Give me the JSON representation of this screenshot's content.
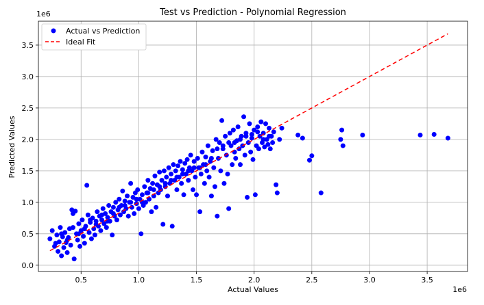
{
  "chart_data": {
    "type": "scatter",
    "title": "Test vs Prediction - Polynomial Regression",
    "xlabel": "Actual Values",
    "ylabel": "Predicted Values",
    "x_multiplier": "1e6",
    "y_multiplier": "1e6",
    "xlim": [
      0.13,
      3.85
    ],
    "ylim": [
      -0.1,
      3.88
    ],
    "x_ticks": [
      "0.5",
      "1.0",
      "1.5",
      "2.0",
      "2.5",
      "3.0",
      "3.5"
    ],
    "y_ticks": [
      "0.0",
      "0.5",
      "1.0",
      "1.5",
      "2.0",
      "2.5",
      "3.0",
      "3.5"
    ],
    "grid": true,
    "legend_position": "top-left",
    "series": [
      {
        "name": "Actual vs Prediction",
        "color": "#0000ff",
        "marker": "circle",
        "points": [
          [
            0.23,
            0.42
          ],
          [
            0.25,
            0.55
          ],
          [
            0.27,
            0.3
          ],
          [
            0.29,
            0.48
          ],
          [
            0.3,
            0.22
          ],
          [
            0.31,
            0.37
          ],
          [
            0.32,
            0.6
          ],
          [
            0.33,
            0.15
          ],
          [
            0.34,
            0.45
          ],
          [
            0.35,
            0.28
          ],
          [
            0.36,
            0.52
          ],
          [
            0.37,
            0.36
          ],
          [
            0.38,
            0.2
          ],
          [
            0.39,
            0.44
          ],
          [
            0.4,
            0.58
          ],
          [
            0.41,
            0.32
          ],
          [
            0.42,
            0.88
          ],
          [
            0.43,
            0.82
          ],
          [
            0.44,
            0.1
          ],
          [
            0.45,
            0.86
          ],
          [
            0.46,
            0.5
          ],
          [
            0.47,
            0.4
          ],
          [
            0.48,
            0.66
          ],
          [
            0.49,
            0.3
          ],
          [
            0.5,
            0.55
          ],
          [
            0.51,
            0.72
          ],
          [
            0.52,
            0.46
          ],
          [
            0.53,
            0.35
          ],
          [
            0.54,
            0.62
          ],
          [
            0.55,
            1.27
          ],
          [
            0.56,
            0.8
          ],
          [
            0.57,
            0.52
          ],
          [
            0.58,
            0.68
          ],
          [
            0.59,
            0.42
          ],
          [
            0.6,
            0.75
          ],
          [
            0.61,
            0.58
          ],
          [
            0.62,
            0.48
          ],
          [
            0.63,
            0.7
          ],
          [
            0.64,
            0.85
          ],
          [
            0.65,
            0.62
          ],
          [
            0.66,
            0.78
          ],
          [
            0.67,
            0.55
          ],
          [
            0.68,
            0.72
          ],
          [
            0.69,
            0.9
          ],
          [
            0.7,
            0.66
          ],
          [
            0.71,
            0.82
          ],
          [
            0.72,
            0.6
          ],
          [
            0.73,
            0.76
          ],
          [
            0.74,
            0.95
          ],
          [
            0.75,
            0.7
          ],
          [
            0.76,
            0.85
          ],
          [
            0.77,
            0.48
          ],
          [
            0.78,
            0.92
          ],
          [
            0.79,
            0.78
          ],
          [
            0.8,
            1.0
          ],
          [
            0.81,
            0.72
          ],
          [
            0.82,
            0.88
          ],
          [
            0.83,
            1.05
          ],
          [
            0.84,
            0.8
          ],
          [
            0.85,
            0.95
          ],
          [
            0.86,
            1.18
          ],
          [
            0.87,
            0.85
          ],
          [
            0.88,
            1.02
          ],
          [
            0.89,
            0.9
          ],
          [
            0.9,
            1.1
          ],
          [
            0.91,
            0.78
          ],
          [
            0.92,
            1.0
          ],
          [
            0.93,
            1.3
          ],
          [
            0.94,
            0.92
          ],
          [
            0.95,
            1.08
          ],
          [
            0.96,
            0.82
          ],
          [
            0.97,
            1.15
          ],
          [
            0.98,
            0.98
          ],
          [
            0.99,
            1.2
          ],
          [
            1.0,
            0.9
          ],
          [
            1.01,
            1.05
          ],
          [
            1.02,
            0.5
          ],
          [
            1.03,
            1.12
          ],
          [
            1.04,
            0.95
          ],
          [
            1.05,
            1.25
          ],
          [
            1.06,
            1.0
          ],
          [
            1.07,
            1.15
          ],
          [
            1.08,
            1.35
          ],
          [
            1.09,
            1.05
          ],
          [
            1.1,
            1.22
          ],
          [
            1.11,
            0.85
          ],
          [
            1.12,
            1.3
          ],
          [
            1.13,
            1.1
          ],
          [
            1.14,
            1.42
          ],
          [
            1.15,
            0.92
          ],
          [
            1.16,
            1.28
          ],
          [
            1.17,
            1.15
          ],
          [
            1.18,
            1.48
          ],
          [
            1.19,
            1.2
          ],
          [
            1.2,
            1.35
          ],
          [
            1.21,
            0.65
          ],
          [
            1.22,
            1.5
          ],
          [
            1.23,
            1.25
          ],
          [
            1.24,
            1.4
          ],
          [
            1.25,
            1.1
          ],
          [
            1.26,
            1.55
          ],
          [
            1.27,
            1.3
          ],
          [
            1.28,
            1.45
          ],
          [
            1.29,
            0.62
          ],
          [
            1.3,
            1.6
          ],
          [
            1.31,
            1.35
          ],
          [
            1.32,
            1.5
          ],
          [
            1.33,
            1.2
          ],
          [
            1.34,
            1.58
          ],
          [
            1.35,
            1.4
          ],
          [
            1.36,
            1.65
          ],
          [
            1.37,
            1.3
          ],
          [
            1.38,
            1.52
          ],
          [
            1.39,
            1.12
          ],
          [
            1.4,
            1.62
          ],
          [
            1.41,
            1.45
          ],
          [
            1.42,
            1.68
          ],
          [
            1.43,
            1.35
          ],
          [
            1.44,
            1.55
          ],
          [
            1.45,
            1.75
          ],
          [
            1.46,
            1.5
          ],
          [
            1.47,
            1.2
          ],
          [
            1.48,
            1.65
          ],
          [
            1.49,
            1.4
          ],
          [
            1.5,
            1.12
          ],
          [
            1.51,
            1.7
          ],
          [
            1.52,
            1.55
          ],
          [
            1.53,
            0.85
          ],
          [
            1.54,
            1.45
          ],
          [
            1.55,
            1.8
          ],
          [
            1.56,
            1.6
          ],
          [
            1.57,
            1.3
          ],
          [
            1.58,
            1.72
          ],
          [
            1.59,
            1.5
          ],
          [
            1.6,
            1.9
          ],
          [
            1.61,
            1.4
          ],
          [
            1.62,
            1.65
          ],
          [
            1.63,
            1.1
          ],
          [
            1.64,
            1.82
          ],
          [
            1.65,
            1.55
          ],
          [
            1.66,
            1.25
          ],
          [
            1.67,
            2.0
          ],
          [
            1.68,
            0.78
          ],
          [
            1.69,
            1.7
          ],
          [
            1.7,
            1.95
          ],
          [
            1.71,
            1.5
          ],
          [
            1.72,
            2.3
          ],
          [
            1.73,
            1.85
          ],
          [
            1.74,
            1.3
          ],
          [
            1.75,
            2.05
          ],
          [
            1.76,
            1.75
          ],
          [
            1.77,
            1.45
          ],
          [
            1.78,
            0.9
          ],
          [
            1.79,
            2.1
          ],
          [
            1.8,
            1.9
          ],
          [
            1.81,
            1.6
          ],
          [
            1.82,
            2.15
          ],
          [
            1.83,
            1.8
          ],
          [
            1.84,
            1.7
          ],
          [
            1.85,
            1.98
          ],
          [
            1.86,
            2.2
          ],
          [
            1.87,
            1.85
          ],
          [
            1.88,
            1.6
          ],
          [
            1.89,
            2.05
          ],
          [
            1.9,
            1.9
          ],
          [
            1.91,
            2.36
          ],
          [
            1.92,
            1.75
          ],
          [
            1.93,
            2.1
          ],
          [
            1.94,
            1.08
          ],
          [
            1.95,
            1.95
          ],
          [
            1.96,
            2.25
          ],
          [
            1.97,
            1.8
          ],
          [
            1.98,
            2.02
          ],
          [
            1.99,
            1.68
          ],
          [
            2.0,
            2.15
          ],
          [
            2.01,
            1.12
          ],
          [
            2.02,
            1.9
          ],
          [
            2.03,
            2.2
          ],
          [
            2.04,
            1.85
          ],
          [
            2.05,
            2.05
          ],
          [
            2.06,
            2.28
          ],
          [
            2.07,
            1.95
          ],
          [
            2.08,
            2.1
          ],
          [
            2.09,
            1.88
          ],
          [
            2.1,
            2.25
          ],
          [
            2.11,
            2.0
          ],
          [
            2.12,
            1.92
          ],
          [
            2.13,
            2.18
          ],
          [
            2.14,
            1.85
          ],
          [
            2.15,
            2.05
          ],
          [
            2.16,
            1.95
          ],
          [
            2.17,
            2.12
          ],
          [
            2.19,
            1.28
          ],
          [
            2.2,
            1.15
          ],
          [
            2.22,
            2.0
          ],
          [
            2.24,
            2.18
          ],
          [
            2.38,
            2.07
          ],
          [
            2.42,
            2.02
          ],
          [
            2.48,
            1.67
          ],
          [
            2.5,
            1.74
          ],
          [
            2.58,
            1.15
          ],
          [
            2.75,
            2.0
          ],
          [
            2.76,
            2.15
          ],
          [
            2.77,
            1.9
          ],
          [
            2.94,
            2.07
          ],
          [
            3.44,
            2.07
          ],
          [
            3.56,
            2.08
          ],
          [
            3.68,
            2.02
          ],
          [
            0.28,
            0.35
          ],
          [
            0.33,
            0.5
          ],
          [
            0.38,
            0.4
          ],
          [
            0.43,
            0.6
          ],
          [
            0.48,
            0.5
          ],
          [
            0.53,
            0.58
          ],
          [
            0.58,
            0.72
          ],
          [
            0.63,
            0.65
          ],
          [
            0.68,
            0.8
          ],
          [
            0.73,
            0.7
          ],
          [
            0.78,
            0.82
          ],
          [
            0.83,
            0.92
          ],
          [
            0.88,
            0.95
          ],
          [
            0.93,
            1.0
          ],
          [
            0.98,
            1.05
          ],
          [
            1.03,
            1.0
          ],
          [
            1.08,
            1.15
          ],
          [
            1.13,
            1.2
          ],
          [
            1.18,
            1.25
          ],
          [
            1.23,
            1.3
          ],
          [
            1.28,
            1.35
          ],
          [
            1.33,
            1.4
          ],
          [
            1.38,
            1.45
          ],
          [
            1.43,
            1.5
          ],
          [
            1.48,
            1.55
          ],
          [
            1.53,
            1.55
          ],
          [
            1.58,
            1.6
          ],
          [
            1.63,
            1.7
          ],
          [
            1.68,
            1.85
          ],
          [
            1.73,
            1.9
          ],
          [
            1.78,
            1.95
          ],
          [
            1.83,
            1.95
          ],
          [
            1.88,
            2.0
          ],
          [
            1.93,
            2.05
          ],
          [
            1.98,
            2.08
          ],
          [
            2.03,
            2.12
          ],
          [
            2.08,
            2.0
          ],
          [
            2.13,
            2.05
          ]
        ]
      },
      {
        "name": "Ideal Fit",
        "color": "#ff0000",
        "style": "dashed",
        "points": [
          [
            0.23,
            0.23
          ],
          [
            3.68,
            3.68
          ]
        ]
      }
    ]
  }
}
